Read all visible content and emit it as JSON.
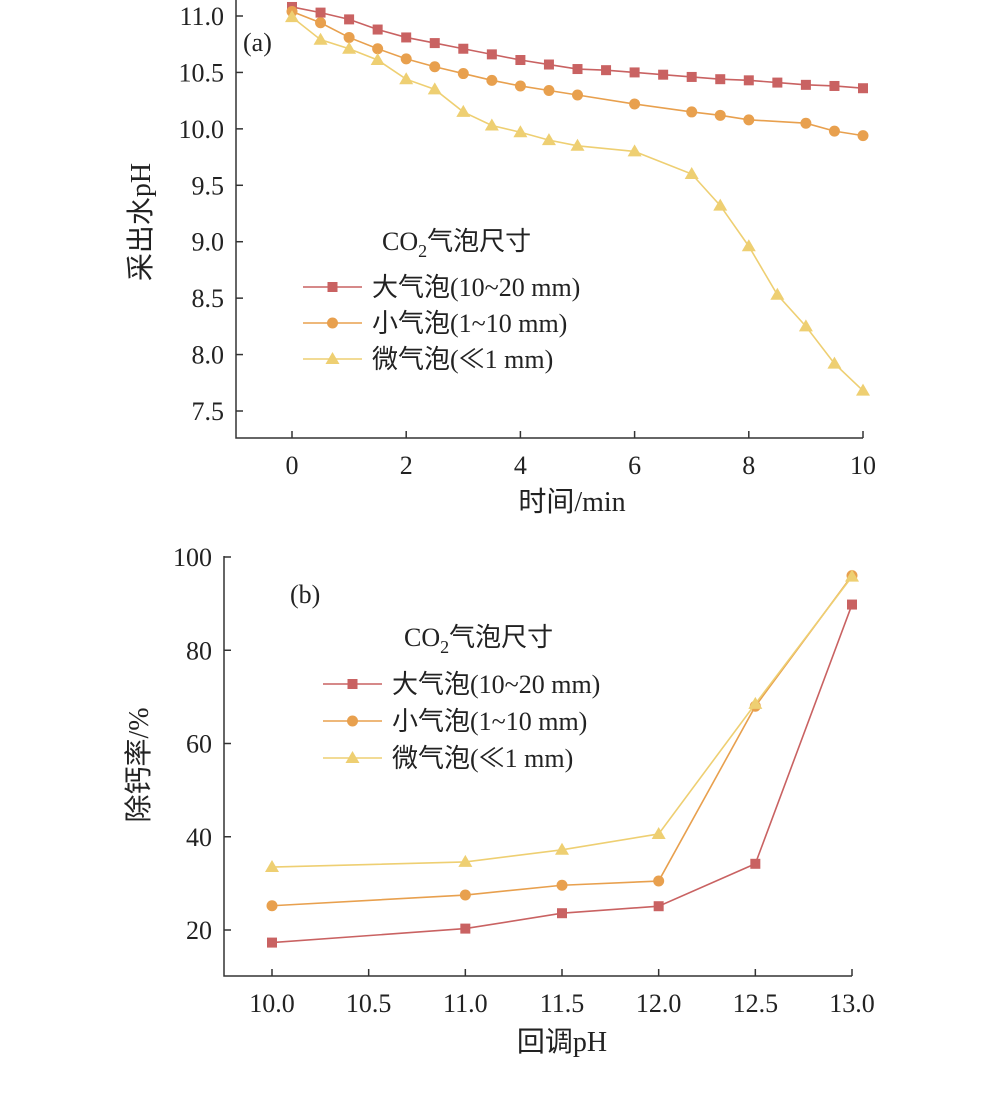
{
  "chart_data": [
    {
      "type": "line",
      "panel_label": "(a)",
      "xlabel": "时间/min",
      "ylabel": "采出水pH",
      "xlim": [
        -1,
        10
      ],
      "ylim": [
        7.25,
        11.15
      ],
      "xticks": [
        0,
        2,
        4,
        6,
        8,
        10
      ],
      "xtick_labels": [
        "0",
        "2",
        "4",
        "6",
        "8",
        "10"
      ],
      "yticks": [
        7.5,
        8.0,
        8.5,
        9.0,
        9.5,
        10.0,
        10.5,
        11.0
      ],
      "ytick_labels": [
        "7.5",
        "8.0",
        "8.5",
        "9.0",
        "9.5",
        "10.0",
        "10.5",
        "11.0"
      ],
      "legend": {
        "title_main": "CO",
        "title_sub": "2",
        "title_rest": "气泡尺寸",
        "position": "center-left"
      },
      "series": [
        {
          "name": "大气泡(10~20 mm)",
          "color": "#c96262",
          "marker": "square",
          "x": [
            0,
            0.5,
            1,
            1.5,
            2,
            2.5,
            3,
            3.5,
            4,
            4.5,
            5,
            5.5,
            6,
            6.5,
            7,
            7.5,
            8,
            8.5,
            9,
            9.5,
            10
          ],
          "y": [
            11.08,
            11.03,
            10.97,
            10.88,
            10.81,
            10.76,
            10.71,
            10.66,
            10.61,
            10.57,
            10.53,
            10.52,
            10.5,
            10.48,
            10.46,
            10.44,
            10.43,
            10.41,
            10.39,
            10.38,
            10.36
          ]
        },
        {
          "name": "小气泡(1~10 mm)",
          "color": "#e8a04e",
          "marker": "circle",
          "x": [
            0,
            0.5,
            1,
            1.5,
            2,
            2.5,
            3,
            3.5,
            4,
            4.5,
            5,
            6,
            7,
            7.5,
            8,
            9,
            9.5,
            10
          ],
          "y": [
            11.04,
            10.94,
            10.81,
            10.71,
            10.62,
            10.55,
            10.49,
            10.43,
            10.38,
            10.34,
            10.3,
            10.22,
            10.15,
            10.12,
            10.08,
            10.05,
            9.98,
            9.94
          ]
        },
        {
          "name": "微气泡(≪1 mm)",
          "color": "#eecf72",
          "marker": "triangle",
          "x": [
            0,
            0.5,
            1,
            1.5,
            2,
            2.5,
            3,
            3.5,
            4,
            4.5,
            5,
            6,
            7,
            7.5,
            8,
            8.5,
            9,
            9.5,
            10
          ],
          "y": [
            10.99,
            10.79,
            10.71,
            10.61,
            10.44,
            10.35,
            10.15,
            10.03,
            9.97,
            9.9,
            9.85,
            9.8,
            9.6,
            9.32,
            8.96,
            8.53,
            8.25,
            7.92,
            7.68
          ]
        }
      ]
    },
    {
      "type": "line",
      "panel_label": "(b)",
      "xlabel": "回调pH",
      "ylabel": "除钙率/%",
      "xlim": [
        9.75,
        13.0
      ],
      "ylim": [
        10,
        100
      ],
      "xticks": [
        10.0,
        10.5,
        11.0,
        11.5,
        12.0,
        12.5,
        13.0
      ],
      "xtick_labels": [
        "10.0",
        "10.5",
        "11.0",
        "11.5",
        "12.0",
        "12.5",
        "13.0"
      ],
      "yticks": [
        20,
        40,
        60,
        80,
        100
      ],
      "ytick_labels": [
        "20",
        "40",
        "60",
        "80",
        "100"
      ],
      "legend": {
        "title_main": "CO",
        "title_sub": "2",
        "title_rest": "气泡尺寸",
        "position": "upper-left"
      },
      "series": [
        {
          "name": "大气泡(10~20 mm)",
          "color": "#c96262",
          "marker": "square",
          "x": [
            10.0,
            11.0,
            11.5,
            12.0,
            12.5,
            13.0
          ],
          "y": [
            17.3,
            20.3,
            23.6,
            25.1,
            34.2,
            89.8
          ]
        },
        {
          "name": "小气泡(1~10 mm)",
          "color": "#e8a04e",
          "marker": "circle",
          "x": [
            10.0,
            11.0,
            11.5,
            12.0,
            12.5,
            13.0
          ],
          "y": [
            25.2,
            27.5,
            29.6,
            30.5,
            68.0,
            96.0
          ]
        },
        {
          "name": "微气泡(≪1 mm)",
          "color": "#eecf72",
          "marker": "triangle",
          "x": [
            10.0,
            11.0,
            11.5,
            12.0,
            12.5,
            13.0
          ],
          "y": [
            33.5,
            34.6,
            37.2,
            40.6,
            68.5,
            95.8
          ]
        }
      ]
    }
  ]
}
